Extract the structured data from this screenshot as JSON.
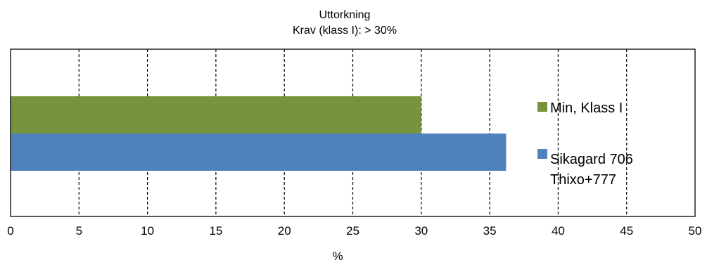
{
  "chart_data": {
    "type": "bar",
    "orientation": "horizontal",
    "title_lines": [
      "Uttorkning",
      "Krav (klass I): > 30%"
    ],
    "xlabel": "%",
    "ylabel": "",
    "xlim": [
      0,
      50
    ],
    "x_ticks": [
      "0",
      "5",
      "10",
      "15",
      "20",
      "25",
      "30",
      "35",
      "40",
      "45",
      "50"
    ],
    "grid": "vertical dashed",
    "legend_position": "right",
    "series": [
      {
        "name": "Min, Klass I",
        "legend_lines": [
          "Min, Klass I"
        ],
        "value": 30,
        "color": "#77933C"
      },
      {
        "name": "Sikagard 706 Thixo+777",
        "legend_lines": [
          "Sikagard 706",
          "Thixo+777"
        ],
        "value": 36.2,
        "color": "#4F81BD"
      }
    ]
  }
}
